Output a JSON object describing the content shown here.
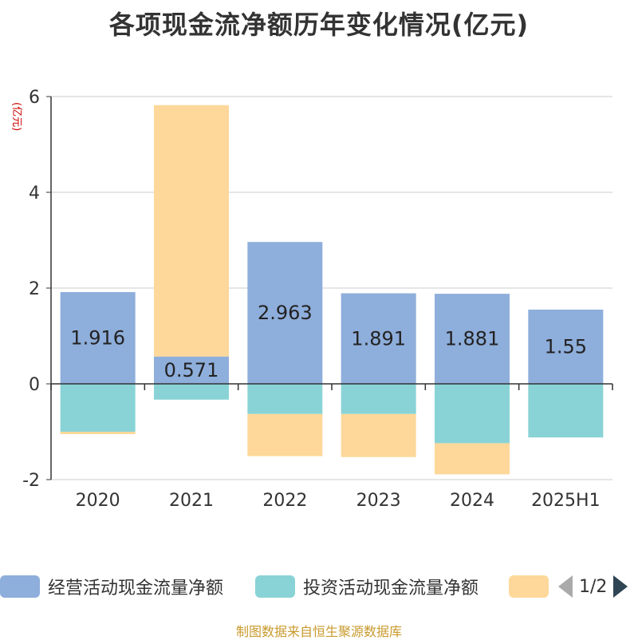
{
  "chart_data": {
    "type": "bar",
    "title": "各项现金流净额历年变化情况(亿元)",
    "ylabel": "(亿元)",
    "xlabel": "",
    "categories": [
      "2020",
      "2021",
      "2022",
      "2023",
      "2024",
      "2025H1"
    ],
    "ylim": [
      -2,
      6
    ],
    "yticks": [
      -2,
      0,
      2,
      4,
      6
    ],
    "stacked": true,
    "grid": true,
    "series": [
      {
        "name": "经营活动现金流量净额",
        "color": "#8eaedb",
        "values": [
          1.916,
          0.571,
          2.963,
          1.891,
          1.881,
          1.55
        ],
        "labels": [
          "1.916",
          "0.571",
          "2.963",
          "1.891",
          "1.881",
          "1.55"
        ]
      },
      {
        "name": "投资活动现金流量净额",
        "color": "#89d3d6",
        "values": [
          -1.0,
          -0.33,
          -0.63,
          -0.63,
          -1.24,
          -1.12
        ]
      },
      {
        "name": "",
        "color": "#fdd89a",
        "values": [
          -0.05,
          5.25,
          -0.88,
          -0.9,
          -0.65,
          0.0
        ]
      }
    ],
    "legend": {
      "placement": "bottom",
      "page": "1/2"
    }
  },
  "footer": "制图数据来自恒生聚源数据库"
}
